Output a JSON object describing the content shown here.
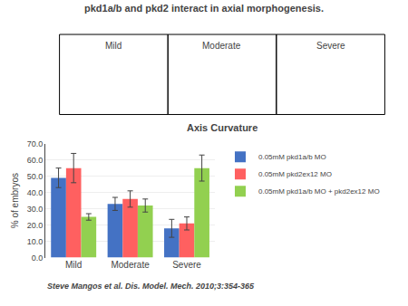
{
  "chart_data": {
    "type": "bar",
    "title": "pkd1a/b and pkd2 interact in axial morphogenesis.",
    "subtitle": "Axis Curvature",
    "y_label": "% of embryos",
    "annotations": [
      "Mild",
      "Moderate",
      "Severe"
    ],
    "footer": "Steve Mangos et al. Dis. Model. Mech. 2010;3:354-365",
    "categories": [
      "Mild",
      "Moderate",
      "Severe"
    ],
    "series": [
      {
        "name": "0.05mM pkd1a/b MO",
        "color": "#4472C4",
        "values": [
          49.0,
          33.0,
          18.0
        ],
        "errors": [
          6.0,
          4.0,
          5.5
        ]
      },
      {
        "name": "0.05mM pkd2ex12 MO",
        "color": "#FF6060",
        "values": [
          55.0,
          36.0,
          21.0
        ],
        "errors": [
          9.0,
          5.0,
          4.0
        ]
      },
      {
        "name": "0.05mM pkd1a/b MO + pkd2ex12 MO",
        "color": "#92D050",
        "values": [
          25.0,
          32.0,
          55.0
        ],
        "errors": [
          2.0,
          4.0,
          8.0
        ]
      }
    ],
    "ylim": [
      0,
      70.0
    ],
    "yticks": [
      {
        "value": 0,
        "label": "0.0"
      },
      {
        "value": 10,
        "label": "10.0"
      },
      {
        "value": 20,
        "label": "20.0"
      },
      {
        "value": 30,
        "label": "30.0"
      },
      {
        "value": 40,
        "label": "40.0"
      },
      {
        "value": 50,
        "label": "50.0"
      },
      {
        "value": 60,
        "label": "60.0"
      },
      {
        "value": 70,
        "label": "70.0"
      }
    ],
    "grid": true,
    "legend": "right"
  }
}
